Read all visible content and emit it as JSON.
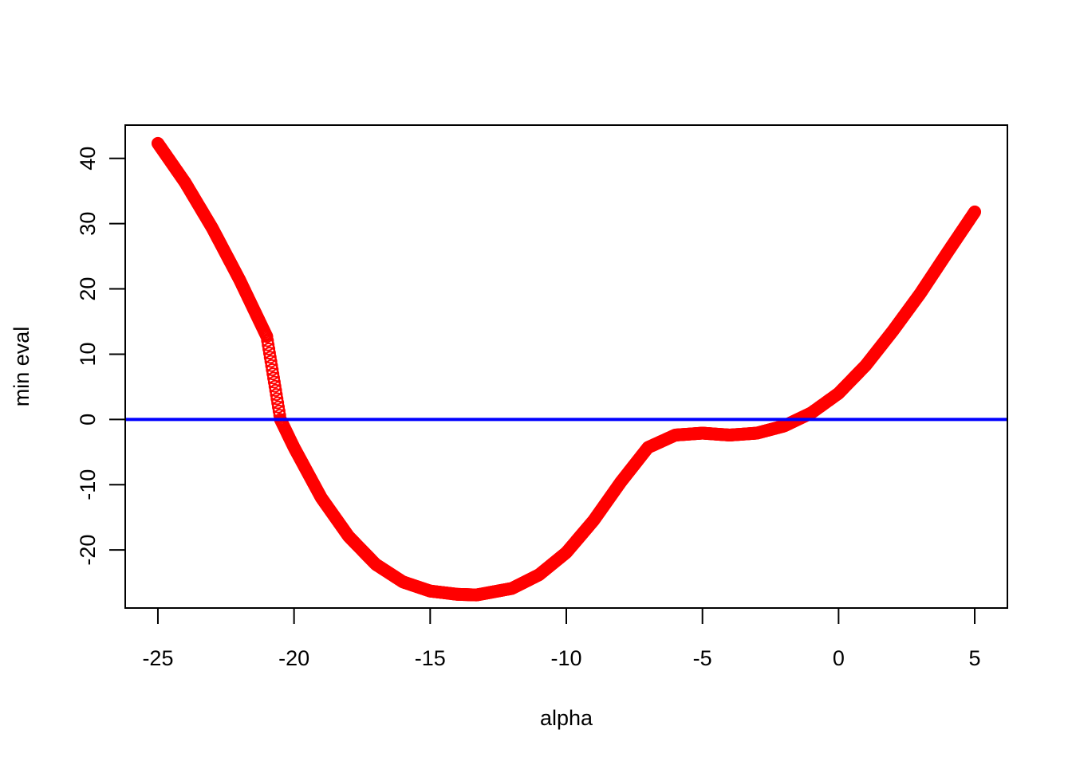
{
  "chart_data": {
    "type": "scatter",
    "xlabel": "alpha",
    "ylabel": "min eval",
    "xlim": [
      -26.2,
      6.2
    ],
    "ylim": [
      -28.9,
      45.1
    ],
    "x_ticks": [
      -25,
      -20,
      -15,
      -10,
      -5,
      0,
      5
    ],
    "y_ticks": [
      -20,
      -10,
      0,
      10,
      20,
      30,
      40
    ],
    "grid": false,
    "legend": "none",
    "series": [
      {
        "color": "#ff0000",
        "marker": "open-circle",
        "x_range": [
          -25,
          5
        ],
        "x_step": 0.025,
        "key_points": [
          [
            -25,
            42.3
          ],
          [
            -24,
            36.3
          ],
          [
            -23,
            29.3
          ],
          [
            -22,
            21.4
          ],
          [
            -21,
            12.7
          ],
          [
            -20.5,
            0
          ],
          [
            -20,
            -4.3
          ],
          [
            -19,
            -12.0
          ],
          [
            -18,
            -17.9
          ],
          [
            -17,
            -22.2
          ],
          [
            -16,
            -24.9
          ],
          [
            -15,
            -26.3
          ],
          [
            -14,
            -26.8
          ],
          [
            -13.3,
            -26.9
          ],
          [
            -12,
            -25.9
          ],
          [
            -11,
            -23.8
          ],
          [
            -10,
            -20.4
          ],
          [
            -9,
            -15.5
          ],
          [
            -8,
            -9.6
          ],
          [
            -7,
            -4.3
          ],
          [
            -6,
            -2.4
          ],
          [
            -5,
            -2.1
          ],
          [
            -4,
            -2.4
          ],
          [
            -3,
            -2.1
          ],
          [
            -2,
            -1.0
          ],
          [
            -1,
            1.0
          ],
          [
            0,
            4.0
          ],
          [
            1,
            8.3
          ],
          [
            2,
            13.6
          ],
          [
            3,
            19.3
          ],
          [
            4,
            25.6
          ],
          [
            5,
            31.8
          ]
        ]
      }
    ],
    "reference_lines": [
      {
        "orientation": "horizontal",
        "y": 0,
        "color": "#0000ff"
      }
    ]
  }
}
